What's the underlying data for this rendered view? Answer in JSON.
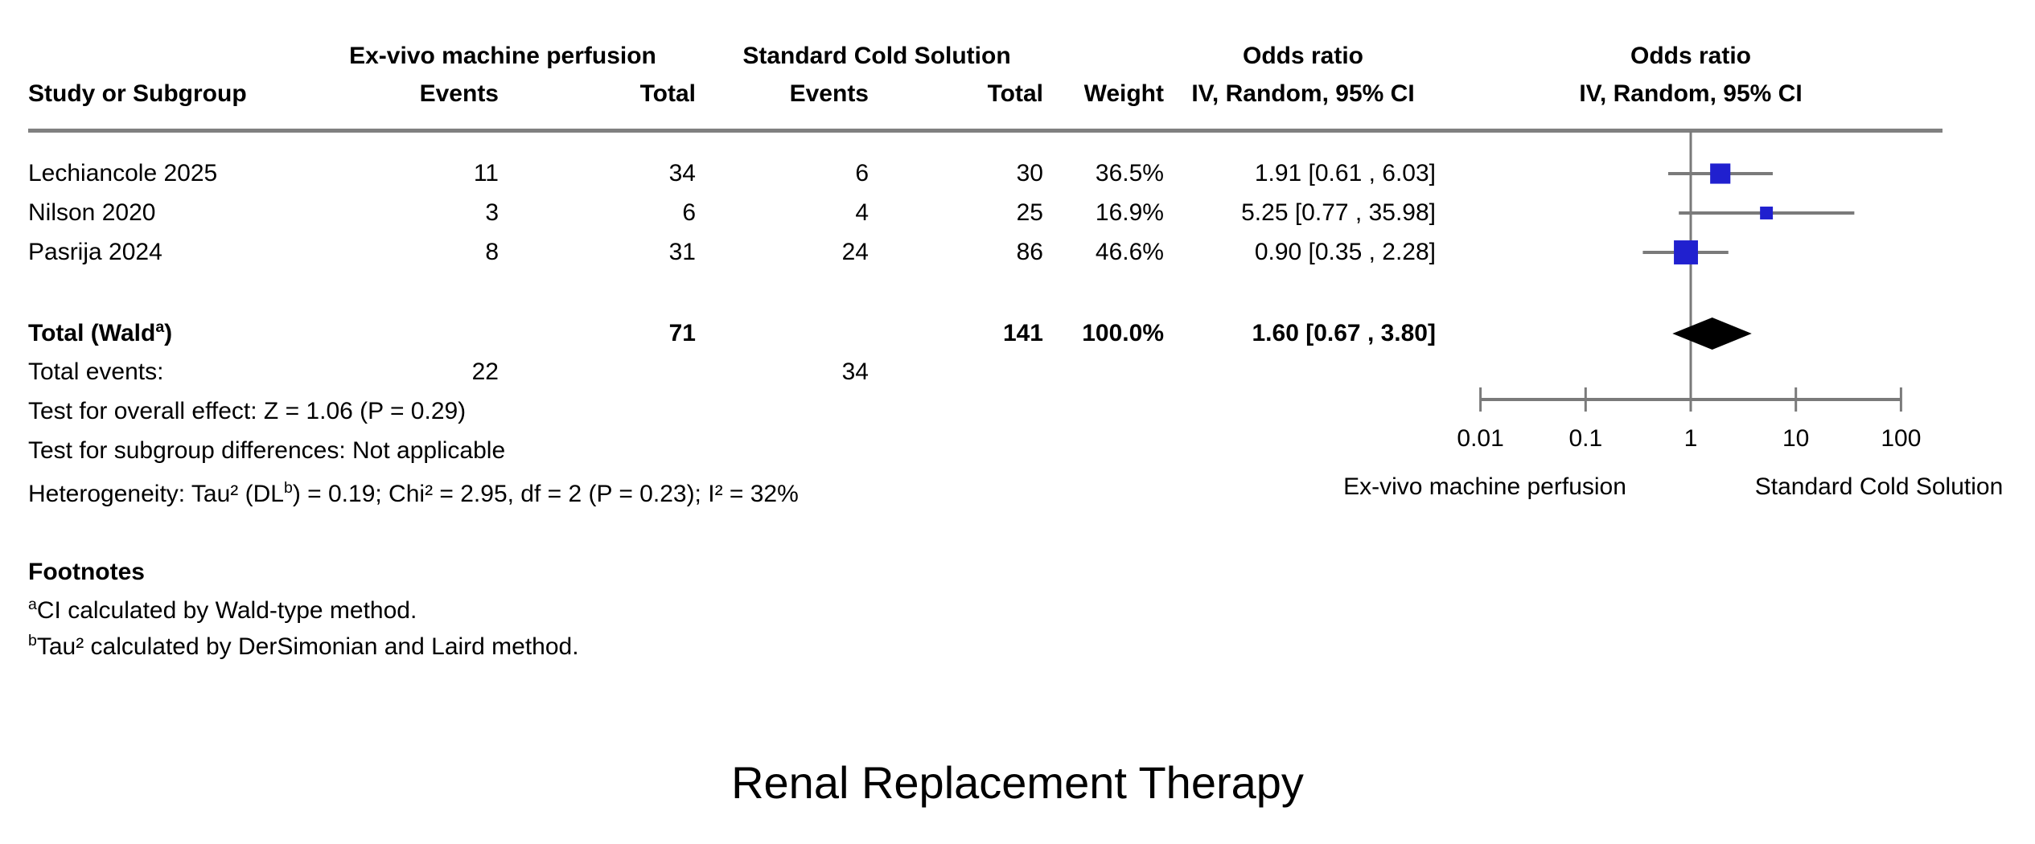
{
  "title": "Renal Replacement Therapy",
  "table": {
    "group_headers": {
      "exvivo": "Ex-vivo machine perfusion",
      "standard": "Standard Cold Solution",
      "or_text": "Odds ratio",
      "or_plot": "Odds ratio"
    },
    "column_headers": {
      "study": "Study or Subgroup",
      "events1": "Events",
      "total1": "Total",
      "events2": "Events",
      "total2": "Total",
      "weight": "Weight",
      "ci_text": "IV, Random, 95% CI",
      "ci_plot": "IV, Random, 95% CI"
    },
    "rows": [
      {
        "study": "Lechiancole 2025",
        "events1": "11",
        "total1": "34",
        "events2": "6",
        "total2": "30",
        "weight": "36.5%",
        "or_ci": "1.91 [0.61 , 6.03]"
      },
      {
        "study": "Nilson 2020",
        "events1": "3",
        "total1": "6",
        "events2": "4",
        "total2": "25",
        "weight": "16.9%",
        "or_ci": "5.25 [0.77 , 35.98]"
      },
      {
        "study": "Pasrija 2024",
        "events1": "8",
        "total1": "31",
        "events2": "24",
        "total2": "86",
        "weight": "46.6%",
        "or_ci": "0.90 [0.35 , 2.28]"
      }
    ],
    "total_row": {
      "label_pre": "Total (Wald",
      "label_sup": "a",
      "label_post": ")",
      "total1": "71",
      "total2": "141",
      "weight": "100.0%",
      "or_ci": "1.60 [0.67 , 3.80]"
    },
    "total_events": {
      "label": "Total events:",
      "events1": "22",
      "events2": "34"
    },
    "stats": {
      "overall_effect": "Test for overall effect: Z = 1.06 (P = 0.29)",
      "subgroup_differences": "Test for subgroup differences: Not applicable",
      "heterogeneity_pre": "Heterogeneity: Tau² (DL",
      "heterogeneity_sup": "b",
      "heterogeneity_post": ") = 0.19; Chi² = 2.95, df = 2 (P = 0.23); I² = 32%"
    }
  },
  "footnotes": {
    "heading": "Footnotes",
    "items": [
      {
        "sup": "a",
        "text": "CI calculated by Wald-type method."
      },
      {
        "sup": "b",
        "text": "Tau² calculated by DerSimonian and Laird method."
      }
    ]
  },
  "chart_data": {
    "type": "forest",
    "effect_measure": "Odds ratio",
    "model": "IV, Random, 95% CI",
    "x_axis": {
      "scale": "log",
      "min": 0.01,
      "max": 100,
      "ticks": [
        0.01,
        0.1,
        1,
        10,
        100
      ],
      "tick_labels": [
        "0.01",
        "0.1",
        "1",
        "10",
        "100"
      ],
      "left_label": "Ex-vivo machine perfusion",
      "right_label": "Standard Cold Solution"
    },
    "studies": [
      {
        "name": "Lechiancole 2025",
        "or": 1.91,
        "ci_low": 0.61,
        "ci_high": 6.03,
        "weight": 36.5
      },
      {
        "name": "Nilson 2020",
        "or": 5.25,
        "ci_low": 0.77,
        "ci_high": 35.98,
        "weight": 16.9
      },
      {
        "name": "Pasrija 2024",
        "or": 0.9,
        "ci_low": 0.35,
        "ci_high": 2.28,
        "weight": 46.6
      }
    ],
    "total": {
      "name": "Total (Wald)",
      "or": 1.6,
      "ci_low": 0.67,
      "ci_high": 3.8,
      "weight": 100.0
    },
    "colors": {
      "marker": "#2020cf",
      "line": "#7a7a7a",
      "diamond": "#000000",
      "rule": "#808080"
    }
  }
}
